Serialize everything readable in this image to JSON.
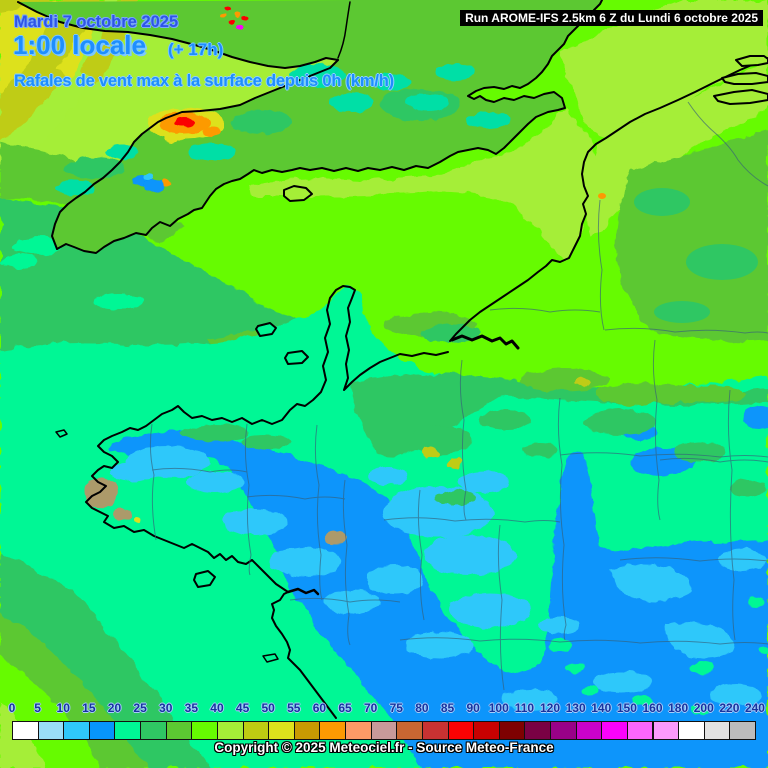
{
  "header": {
    "date_line": "Mardi 7 octobre 2025",
    "time_line": "1:00 locale",
    "offset": "(+ 17h)",
    "subtitle": "Rafales de vent max à la surface depuis 0h (km/h)",
    "run_info": "Run AROME-IFS 2.5km 6 Z du Lundi 6 octobre 2025"
  },
  "footer": {
    "copyright": "Copyright © 2025 Meteociel.fr - Source Meteo-France"
  },
  "legend": {
    "unit": "km/h",
    "ticks": [
      0,
      5,
      10,
      15,
      20,
      25,
      30,
      35,
      40,
      45,
      50,
      55,
      60,
      65,
      70,
      75,
      80,
      85,
      90,
      100,
      110,
      120,
      130,
      140,
      150,
      160,
      180,
      200,
      220,
      240
    ],
    "box_colors": [
      "#ffffff",
      "#9adef8",
      "#2fc8fa",
      "#0795fb",
      "#00f795",
      "#2fc763",
      "#5cc832",
      "#66fb01",
      "#a5ee37",
      "#bfcc12",
      "#dde11c",
      "#c89a02",
      "#fd9a02",
      "#fd9a66",
      "#c89a9a",
      "#c86632",
      "#c83232",
      "#fb0203",
      "#c80101",
      "#7e0101",
      "#7a0144",
      "#990188",
      "#ca02ca",
      "#fb02fb",
      "#fc66fc",
      "#fc9afc",
      "#ffffff",
      "#e2e2e2",
      "#bcbcbc"
    ]
  },
  "map": {
    "region": "Northwest France / English Channel / Southern England",
    "palette": {
      "gust_35_40": "#66fb01",
      "gust_40_45": "#a5ee37",
      "gust_30_35": "#5cc832",
      "gust_25_30": "#2fc763",
      "gust_20_25": "#00f795",
      "gust_15_20": "#0795fb",
      "gust_10_15": "#2fc8fa",
      "gust_45_50": "#bfcc12",
      "gust_50_55": "#dde11c",
      "gust_60_65": "#fd9a02",
      "gust_85_90": "#fb0203"
    }
  }
}
